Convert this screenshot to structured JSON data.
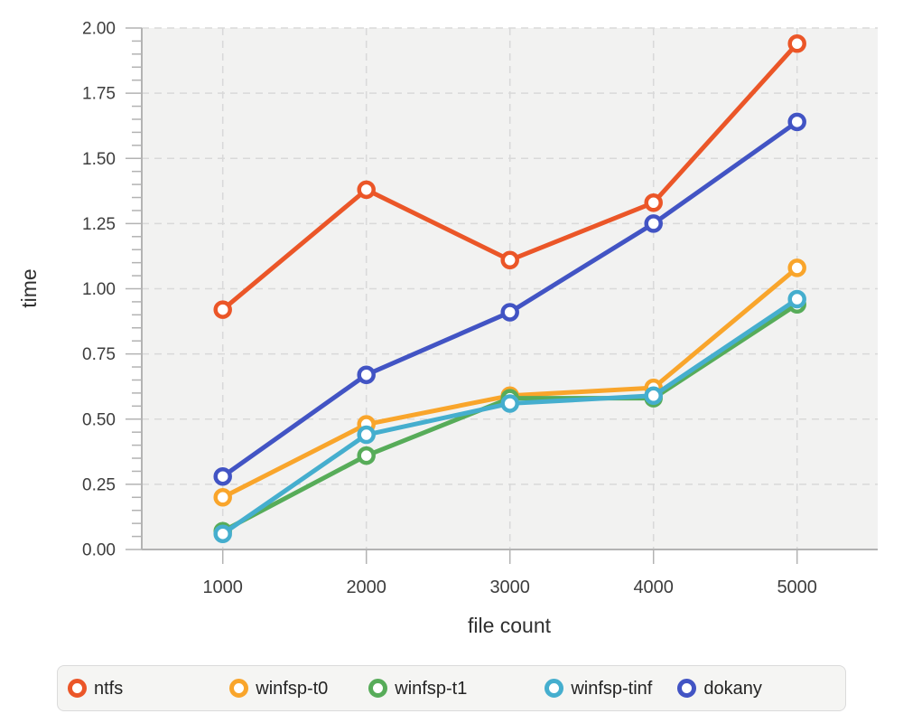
{
  "chart_data": {
    "type": "line",
    "title": "",
    "xlabel": "file count",
    "ylabel": "time",
    "x": [
      1000,
      2000,
      3000,
      4000,
      5000
    ],
    "x_tick_labels": [
      "1000",
      "2000",
      "3000",
      "4000",
      "5000"
    ],
    "y_tick_labels": [
      "0.00",
      "0.25",
      "0.50",
      "0.75",
      "1.00",
      "1.25",
      "1.50",
      "1.75",
      "2.00"
    ],
    "ylim": [
      0,
      2.0
    ],
    "xlim": [
      1000,
      5000
    ],
    "y_tick_step": 0.25,
    "y_minor_tick_step": 0.05,
    "grid": "dashed",
    "legend_position": "bottom",
    "series": [
      {
        "name": "ntfs",
        "color": "#EB5628",
        "values": [
          0.92,
          1.38,
          1.11,
          1.33,
          1.94
        ]
      },
      {
        "name": "winfsp-t0",
        "color": "#F9A52B",
        "values": [
          0.2,
          0.48,
          0.59,
          0.62,
          1.08
        ]
      },
      {
        "name": "winfsp-t1",
        "color": "#57AC59",
        "values": [
          0.07,
          0.36,
          0.58,
          0.58,
          0.94
        ]
      },
      {
        "name": "winfsp-tinf",
        "color": "#45AECE",
        "values": [
          0.06,
          0.44,
          0.56,
          0.59,
          0.96
        ]
      },
      {
        "name": "dokany",
        "color": "#4254C4",
        "values": [
          0.28,
          0.67,
          0.91,
          1.25,
          1.64
        ]
      }
    ],
    "colors": {
      "plot_background": "#F2F2F1",
      "grid_line": "#D9D9D9",
      "axis_line": "#B3B3B3",
      "tick_label": "#3D3D3D",
      "axis_title": "#303030"
    }
  }
}
